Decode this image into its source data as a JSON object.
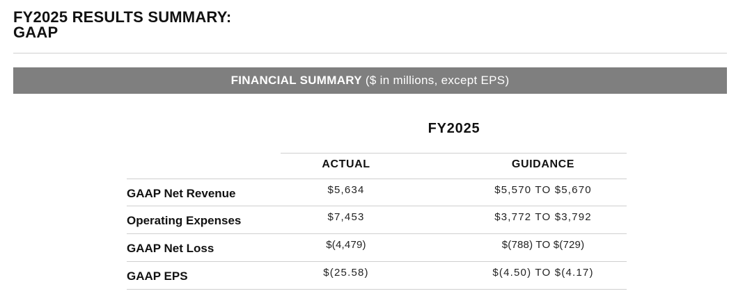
{
  "header": {
    "title_line1": "FY2025 RESULTS SUMMARY:",
    "title_line2": "GAAP"
  },
  "banner": {
    "bold": "FINANCIAL SUMMARY",
    "normal": "($ in millions, except EPS)"
  },
  "table": {
    "period": "FY2025",
    "columns": {
      "actual": "ACTUAL",
      "guidance": "GUIDANCE"
    },
    "rows": [
      {
        "label": "GAAP Net Revenue",
        "actual": "$5,634",
        "guidance": "$5,570 TO $5,670"
      },
      {
        "label": "Operating Expenses",
        "actual": "$7,453",
        "guidance": "$3,772 TO $3,792"
      },
      {
        "label": "GAAP Net Loss",
        "actual": "$(4,479)",
        "guidance": "$(788) TO $(729)"
      },
      {
        "label": "GAAP EPS",
        "actual": "$(25.58)",
        "guidance": "$(4.50) TO $(4.17)"
      }
    ]
  },
  "colors": {
    "banner_background": "#7f7f7f",
    "rule": "#cfcfcf",
    "text": "#111111"
  }
}
